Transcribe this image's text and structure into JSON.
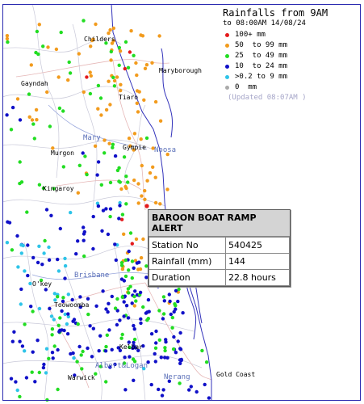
{
  "legend": {
    "title": "Rainfalls from 9AM",
    "subtitle": "to 08:00AM 14/08/24",
    "updated": "(Updated 08:07AM  )",
    "items": [
      {
        "label": "100+ mm",
        "color": "#e41a1c"
      },
      {
        "label": "50  to 99 mm",
        "color": "#f29b1d"
      },
      {
        "label": "25  to 49 mm",
        "color": "#22dd22"
      },
      {
        "label": "10  to 24 mm",
        "color": "#1010c8"
      },
      {
        "label": ">0.2 to 9 mm",
        "color": "#2ec4e8"
      },
      {
        "label": "0  mm",
        "color": "#aaaaaa"
      }
    ]
  },
  "places": [
    {
      "name": "Childers"
    },
    {
      "name": "Maryborough"
    },
    {
      "name": "Gayndah"
    },
    {
      "name": "Tiaro"
    },
    {
      "name": "Mary"
    },
    {
      "name": "Gympie"
    },
    {
      "name": "Noosa"
    },
    {
      "name": "Murgon"
    },
    {
      "name": "Kingaroy"
    },
    {
      "name": "Brisbane"
    },
    {
      "name": "O'key"
    },
    {
      "name": "Toowoomba"
    },
    {
      "name": "Kelbar"
    },
    {
      "name": "Albert&Logan"
    },
    {
      "name": "Gold Coast"
    },
    {
      "name": "Nerang"
    },
    {
      "name": "Warwick"
    }
  ],
  "alert": {
    "title": "BAROON BOAT RAMP ALERT",
    "rows": [
      {
        "key": "Station No",
        "value": "540425"
      },
      {
        "key": "Rainfall (mm)",
        "value": "144"
      },
      {
        "key": "Duration",
        "value": "22.8 hours"
      }
    ]
  }
}
